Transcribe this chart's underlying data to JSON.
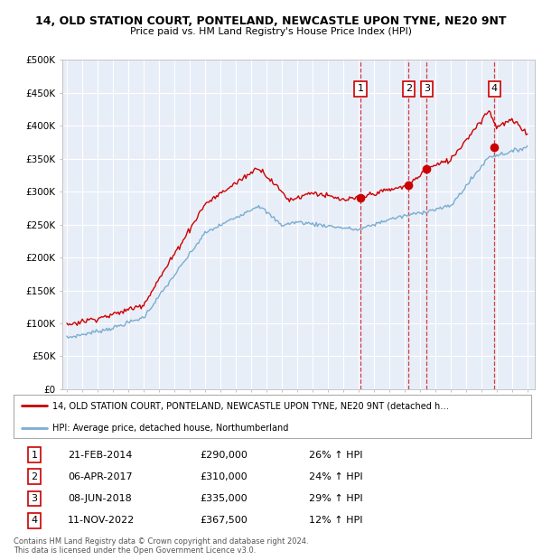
{
  "title1": "14, OLD STATION COURT, PONTELAND, NEWCASTLE UPON TYNE, NE20 9NT",
  "title2": "Price paid vs. HM Land Registry's House Price Index (HPI)",
  "legend_line1": "14, OLD STATION COURT, PONTELAND, NEWCASTLE UPON TYNE, NE20 9NT (detached h…",
  "legend_line2": "HPI: Average price, detached house, Northumberland",
  "transactions": [
    {
      "num": 1,
      "date": "21-FEB-2014",
      "price": 290000,
      "pct": "26% ↑ HPI",
      "x_year": 2014.13
    },
    {
      "num": 2,
      "date": "06-APR-2017",
      "price": 310000,
      "pct": "24% ↑ HPI",
      "x_year": 2017.27
    },
    {
      "num": 3,
      "date": "08-JUN-2018",
      "price": 335000,
      "pct": "29% ↑ HPI",
      "x_year": 2018.44
    },
    {
      "num": 4,
      "date": "11-NOV-2022",
      "price": 367500,
      "pct": "12% ↑ HPI",
      "x_year": 2022.86
    }
  ],
  "footer1": "Contains HM Land Registry data © Crown copyright and database right 2024.",
  "footer2": "This data is licensed under the Open Government Licence v3.0.",
  "red_color": "#cc0000",
  "blue_color": "#7aadcf",
  "background_color": "#e8eef8",
  "grid_color": "#ffffff",
  "ylim": [
    0,
    500000
  ],
  "xlim": [
    1994.7,
    2025.5
  ],
  "yticks": [
    0,
    50000,
    100000,
    150000,
    200000,
    250000,
    300000,
    350000,
    400000,
    450000,
    500000
  ],
  "ylabels": [
    "£0",
    "£50K",
    "£100K",
    "£150K",
    "£200K",
    "£250K",
    "£300K",
    "£350K",
    "£400K",
    "£450K",
    "£500K"
  ]
}
